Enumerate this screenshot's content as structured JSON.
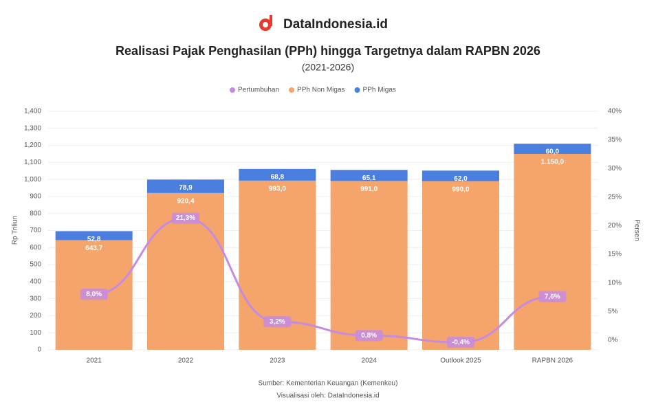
{
  "brand": "DataIndonesia.id",
  "chart_data": {
    "type": "bar",
    "title": "Realisasi Pajak Penghasilan (PPh) hingga Targetnya dalam RAPBN 2026",
    "subtitle": "(2021-2026)",
    "y_label": "Rp Triliun",
    "y2_label": "Persen",
    "categories": [
      "2021",
      "2022",
      "2023",
      "2024",
      "Outlook 2025",
      "RAPBN 2026"
    ],
    "series": [
      {
        "name": "Pertumbuhan",
        "color": "#c58be0",
        "axis": "y2",
        "kind": "line",
        "values": [
          8.0,
          21.3,
          3.2,
          0.8,
          -0.4,
          7.6
        ],
        "value_labels": [
          "8,0%",
          "21,3%",
          "3,2%",
          "0,8%",
          "-0,4%",
          "7,6%"
        ]
      },
      {
        "name": "PPh Non Migas",
        "color": "#f5a56b",
        "kind": "bar",
        "values": [
          643.7,
          920.4,
          993.0,
          991.0,
          990.0,
          1150.0
        ],
        "value_labels": [
          "643,7",
          "920,4",
          "993,0",
          "991,0",
          "990,0",
          "1.150,0"
        ]
      },
      {
        "name": "PPh Migas",
        "color": "#4a7fe0",
        "kind": "bar",
        "values": [
          52.8,
          78.9,
          68.8,
          65.1,
          62.0,
          60.0
        ],
        "value_labels": [
          "52,8",
          "78,9",
          "68,8",
          "65,1",
          "62,0",
          "60,0"
        ]
      }
    ],
    "ylim": [
      0,
      1400
    ],
    "yticks": [
      0,
      100,
      200,
      300,
      400,
      500,
      600,
      700,
      800,
      900,
      {
        "value": 1000,
        "label": "1,000"
      },
      {
        "value": 1100,
        "label": "1,100"
      },
      {
        "value": 1200,
        "label": "1,200"
      },
      {
        "value": 1300,
        "label": "1,300"
      },
      {
        "value": 1400,
        "label": "1,400"
      }
    ],
    "y2lim": [
      -1.7,
      40
    ],
    "y2ticks": [
      {
        "value": 0,
        "label": "0%"
      },
      {
        "value": 5,
        "label": "5%"
      },
      {
        "value": 10,
        "label": "10%"
      },
      {
        "value": 15,
        "label": "15%"
      },
      {
        "value": 20,
        "label": "20%"
      },
      {
        "value": 25,
        "label": "25%"
      },
      {
        "value": 30,
        "label": "30%"
      },
      {
        "value": 35,
        "label": "35%"
      },
      {
        "value": 40,
        "label": "40%"
      }
    ],
    "grid": true,
    "legend": "top",
    "source": "Sumber: Kementerian Keuangan (Kemenkeu)",
    "credit": "Visualisasi oleh: DataIndonesia.id"
  }
}
